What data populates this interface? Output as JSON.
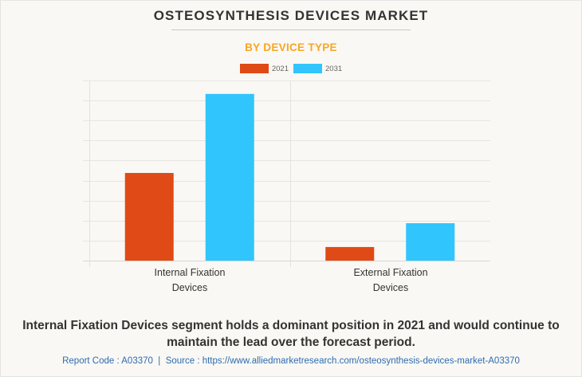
{
  "header": {
    "title": "OSTEOSYNTHESIS DEVICES MARKET",
    "subtitle": "BY DEVICE TYPE"
  },
  "colors": {
    "series_2021": "#e04a16",
    "series_2031": "#31c5fd",
    "subtitle": "#f7a626",
    "footer_link": "#2f6bb1"
  },
  "chart_data": {
    "type": "bar",
    "title": "OSTEOSYNTHESIS DEVICES MARKET",
    "subtitle": "BY DEVICE TYPE",
    "categories": [
      "Internal Fixation Devices",
      "External Fixation Devices"
    ],
    "category_lines": [
      [
        "Internal Fixation",
        "Devices"
      ],
      [
        "External Fixation",
        "Devices"
      ]
    ],
    "series": [
      {
        "name": "2021",
        "color": "#e04a16",
        "values": [
          4.38,
          0.68
        ]
      },
      {
        "name": "2031",
        "color": "#31c5fd",
        "values": [
          8.33,
          1.87
        ]
      }
    ],
    "xlabel": "",
    "ylabel": "",
    "ylim": [
      0,
      9
    ],
    "y_units": "relative (gridline units; axis unlabeled)",
    "grid": true,
    "gridline_count": 9,
    "legend_position": "top-center"
  },
  "caption": "Internal Fixation Devices segment holds a dominant position in 2021 and would continue to maintain the lead over the forecast period.",
  "footer": {
    "report_code_label": "Report Code : A03370",
    "separator": "|",
    "source_label": "Source : https://www.alliedmarketresearch.com/osteosynthesis-devices-market-A03370"
  }
}
